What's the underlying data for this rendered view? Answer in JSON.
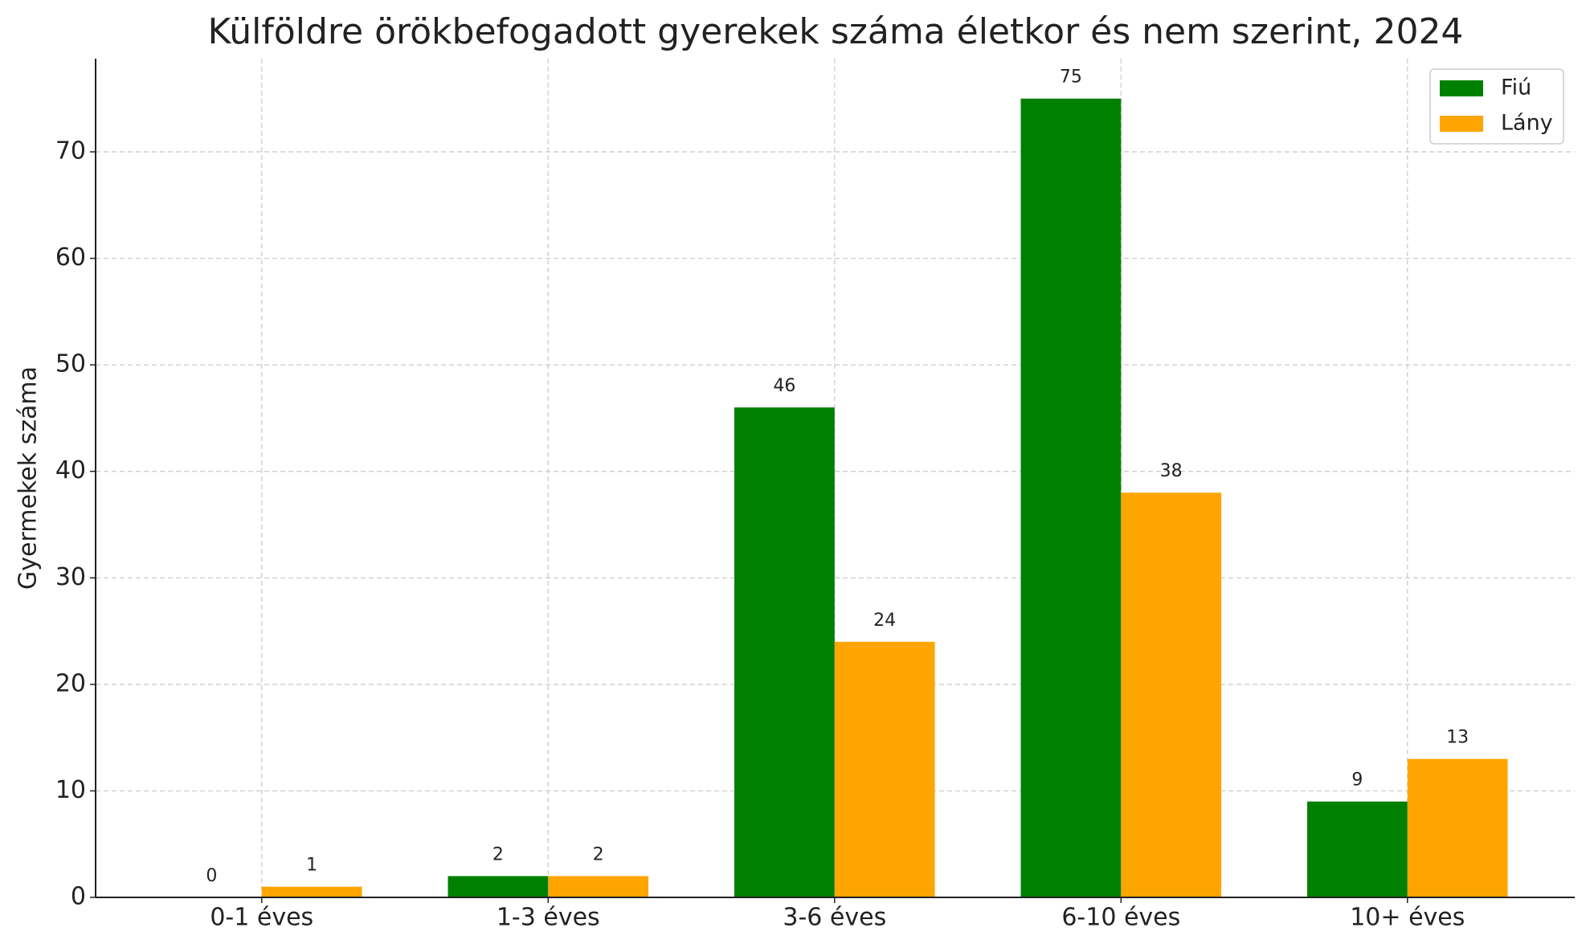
{
  "chart_data": {
    "type": "bar",
    "title": "Külföldre örökbefogadott gyerekek száma életkor és nem szerint, 2024",
    "y_label": "Gyermekek száma",
    "categories": [
      "0-1 éves",
      "1-3 éves",
      "3-6 éves",
      "6-10 éves",
      "10+ éves"
    ],
    "series": [
      {
        "name": "Fiú",
        "color": "#008000",
        "values": [
          0,
          2,
          46,
          75,
          9
        ]
      },
      {
        "name": "Lány",
        "color": "#ffa500",
        "values": [
          1,
          2,
          24,
          38,
          13
        ]
      }
    ],
    "ylim": [
      0,
      78.75
    ],
    "yticks": [
      0,
      10,
      20,
      30,
      40,
      50,
      60,
      70
    ],
    "grid": true,
    "legend": "upper right"
  }
}
